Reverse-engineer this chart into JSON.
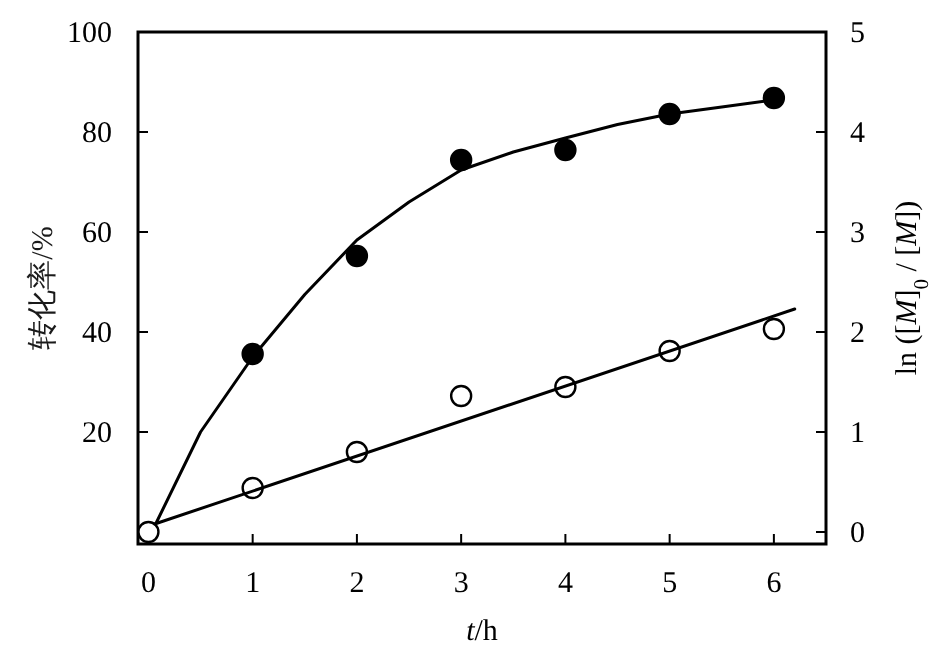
{
  "chart_data": {
    "type": "scatter",
    "xlabel": "*t*/h",
    "ylabel": "转化率/%",
    "y2label": "ln ([*M*]$_{0}$ / [*M*])",
    "xlim": [
      -0.1,
      6.5
    ],
    "xticks": [
      0,
      1,
      2,
      3,
      4,
      5,
      6
    ],
    "ylim": [
      -2.4,
      100
    ],
    "yticks": [
      20,
      40,
      60,
      80,
      100
    ],
    "y2lim": [
      -0.12,
      5
    ],
    "y2ticks": [
      0,
      1,
      2,
      3,
      4,
      5
    ],
    "grid": false,
    "series": [
      {
        "type": "scatter",
        "marker": "circle",
        "color": "#000000",
        "x": [
          1,
          2,
          3,
          4,
          5,
          6
        ],
        "values": [
          35.6,
          55.2,
          74.4,
          76.4,
          83.6,
          86.8
        ]
      },
      {
        "type": "line",
        "marker": "none",
        "color": "#000000",
        "x": [
          0.06,
          0.5,
          1,
          1.5,
          2,
          2.5,
          3,
          3.5,
          4,
          4.5,
          5,
          5.5,
          6
        ],
        "values": [
          1.2,
          20,
          35,
          47.5,
          58.4,
          66,
          72.4,
          76,
          78.8,
          81.5,
          83.6,
          85,
          86.4
        ]
      },
      {
        "type": "scatter",
        "marker": "circle",
        "color": "#ffffff",
        "axis": "y2",
        "x": [
          0,
          1,
          2,
          3,
          4,
          5,
          6
        ],
        "values": [
          0,
          0.44,
          0.8,
          1.36,
          1.45,
          1.81,
          2.03
        ]
      },
      {
        "type": "line",
        "marker": "none",
        "color": "#000000",
        "axis": "y2",
        "x": [
          0.06,
          6.2
        ],
        "values": [
          0.08,
          2.23
        ]
      }
    ]
  }
}
